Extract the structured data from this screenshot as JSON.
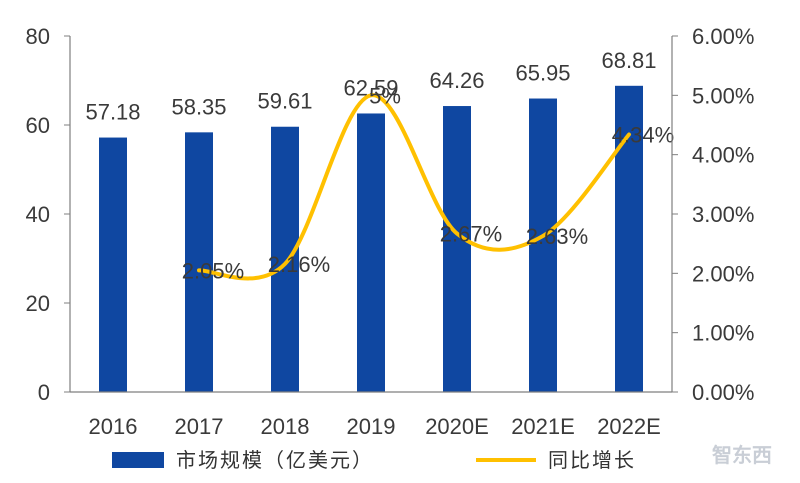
{
  "chart_data": {
    "type": "bar",
    "categories": [
      "2016",
      "2017",
      "2018",
      "2019",
      "2020E",
      "2021E",
      "2022E"
    ],
    "series": [
      {
        "name": "市场规模（亿美元）",
        "type": "bar",
        "axis": "left",
        "values": [
          57.18,
          58.35,
          59.61,
          62.59,
          64.26,
          65.95,
          68.81
        ],
        "labels": [
          "57.18",
          "58.35",
          "59.61",
          "62.59",
          "64.26",
          "65.95",
          "68.81"
        ]
      },
      {
        "name": "同比增长",
        "type": "line",
        "axis": "right",
        "values": [
          null,
          2.05,
          2.16,
          5.0,
          2.67,
          2.63,
          4.34
        ],
        "labels": [
          "",
          "2.05%",
          "2.16%",
          "5%",
          "2.67%",
          "2.63%",
          "4.34%"
        ]
      }
    ],
    "left_axis": {
      "ylim": [
        0,
        80
      ],
      "ticks": [
        "0",
        "20",
        "40",
        "60",
        "80"
      ]
    },
    "right_axis": {
      "ylim": [
        0,
        6
      ],
      "ticks": [
        "0.00%",
        "1.00%",
        "2.00%",
        "3.00%",
        "4.00%",
        "5.00%",
        "6.00%"
      ]
    },
    "colors": {
      "bar": "#0f47a1",
      "line": "#ffc000",
      "axis": "#7f7f7f"
    },
    "legend_position": "bottom",
    "grid": false,
    "title": "",
    "xlabel": "",
    "ylabel": ""
  },
  "watermark": "智东西"
}
